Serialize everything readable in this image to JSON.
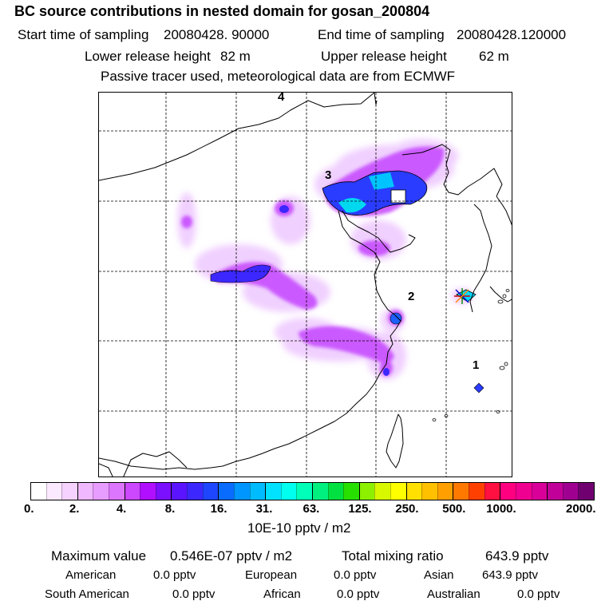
{
  "header": {
    "title": "BC  source contributions in nested domain for gosan_200804",
    "start_label": "Start time of sampling",
    "start_value": "20080428. 90000",
    "end_label": "End time of sampling",
    "end_value": "20080428.120000",
    "lower_label": "Lower release height",
    "lower_value": "82 m",
    "upper_label": "Upper release height",
    "upper_value": "62 m",
    "note": "Passive tracer used, meteorological data are from ECMWF"
  },
  "map": {
    "labels": [
      "4",
      "3",
      "2",
      "1"
    ],
    "receptor_marker": "asterisk-marker"
  },
  "legend": {
    "colors": [
      "#ffffff",
      "#fbe9ff",
      "#f5d2ff",
      "#efb8ff",
      "#e79cff",
      "#dc76ff",
      "#cc48ff",
      "#b010ff",
      "#7b10ff",
      "#5b14ff",
      "#3c28ff",
      "#1e46ff",
      "#0a6cff",
      "#0096ff",
      "#00bcff",
      "#00e2ff",
      "#00ffee",
      "#00ffb8",
      "#00f080",
      "#00e040",
      "#28e000",
      "#8cf000",
      "#d8f800",
      "#ffff00",
      "#ffe000",
      "#ffc000",
      "#ffa000",
      "#ff7800",
      "#ff4000",
      "#ff1040",
      "#ff0080",
      "#f00090",
      "#d80098",
      "#c00098",
      "#a00090",
      "#700070"
    ],
    "ticks": [
      "0.",
      "2.",
      "4.",
      "8.",
      "16.",
      "31.",
      "63.",
      "125.",
      "250.",
      "500.",
      "1000.",
      "2000."
    ],
    "unit": "10E-10 pptv / m2"
  },
  "stats": {
    "max_label": "Maximum value",
    "max_value": "0.546E-07 pptv / m2",
    "total_label": "Total mixing ratio",
    "total_value": "643.9 pptv",
    "regions": [
      {
        "name": "American",
        "value": "0.0 pptv"
      },
      {
        "name": "European",
        "value": "0.0 pptv"
      },
      {
        "name": "Asian",
        "value": "643.9 pptv"
      },
      {
        "name": "South American",
        "value": "0.0 pptv"
      },
      {
        "name": "African",
        "value": "0.0 pptv"
      },
      {
        "name": "Australian",
        "value": "0.0 pptv"
      }
    ]
  }
}
